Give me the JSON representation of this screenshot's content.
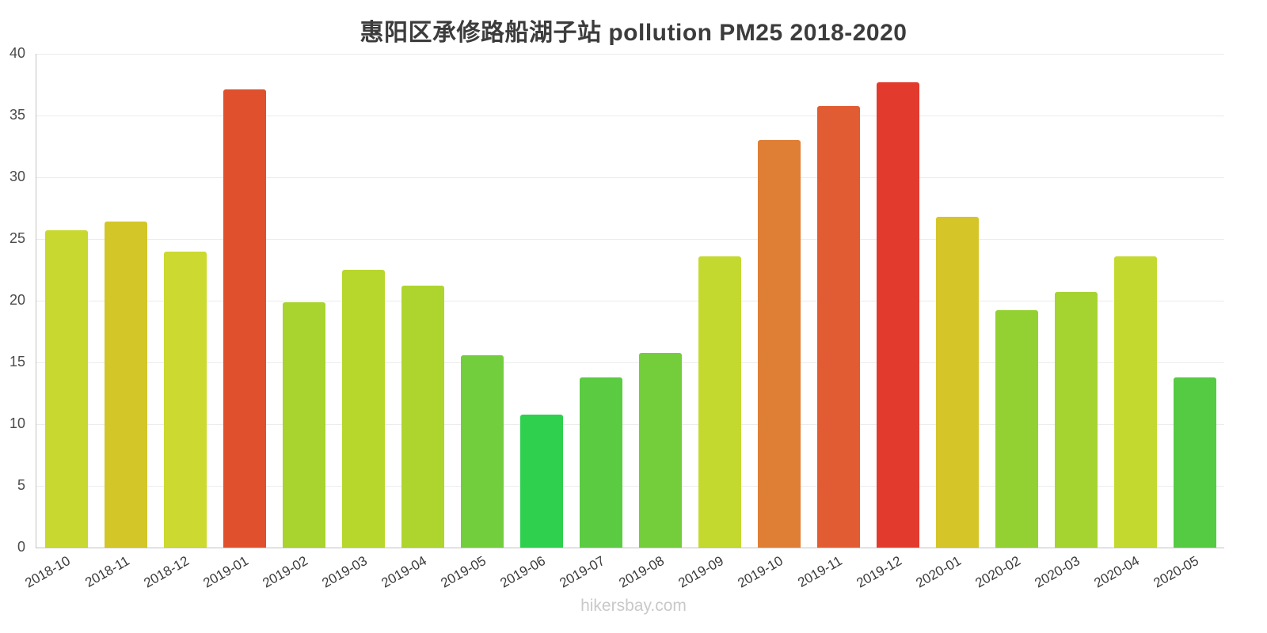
{
  "footer": {
    "watermark": "hikersbay.com"
  },
  "chart_data": {
    "type": "bar",
    "title": "惠阳区承修路船湖子站 pollution PM25 2018-2020",
    "xlabel": "",
    "ylabel": "",
    "ylim": [
      0,
      40
    ],
    "yticks": [
      0,
      5,
      10,
      15,
      20,
      25,
      30,
      35,
      40
    ],
    "grid": true,
    "legend": "none",
    "categories": [
      "2018-10",
      "2018-11",
      "2018-12",
      "2019-01",
      "2019-02",
      "2019-03",
      "2019-04",
      "2019-05",
      "2019-06",
      "2019-07",
      "2019-08",
      "2019-09",
      "2019-10",
      "2019-11",
      "2019-12",
      "2020-01",
      "2020-02",
      "2020-03",
      "2020-04",
      "2020-05"
    ],
    "values": [
      25.7,
      26.4,
      24.0,
      37.1,
      19.9,
      22.5,
      21.2,
      15.6,
      10.8,
      13.8,
      15.8,
      23.6,
      33.0,
      35.8,
      37.7,
      26.8,
      19.2,
      20.7,
      23.6,
      13.8
    ],
    "colors": [
      "#c9d831",
      "#d3c628",
      "#ccd930",
      "#e0502c",
      "#a9d32e",
      "#b8d72d",
      "#aed52e",
      "#72ce3c",
      "#2ed04e",
      "#5bcb42",
      "#74ce3b",
      "#c4d930",
      "#df7e35",
      "#e25c33",
      "#e23b2e",
      "#d6c528",
      "#93d133",
      "#a5d430",
      "#c4d930",
      "#55ca43"
    ]
  }
}
